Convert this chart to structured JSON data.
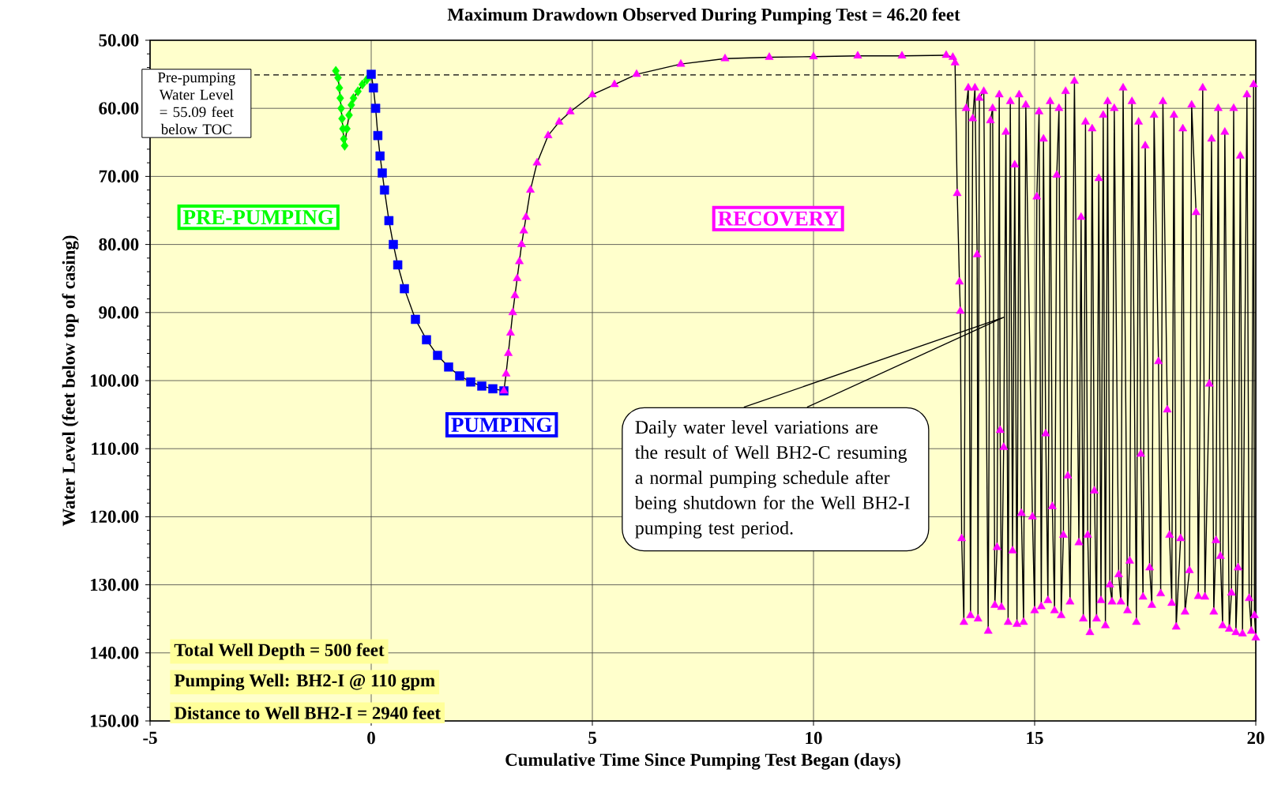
{
  "chart_data": {
    "type": "line",
    "title": "Maximum Drawdown Observed During Pumping Test = 46.20 feet",
    "xlabel": "Cumulative Time Since Pumping Test Began (days)",
    "ylabel": "Water Level (feet below top of casing)",
    "xlim": [
      -5,
      20
    ],
    "xticks": [
      -5,
      0,
      5,
      10,
      15,
      20
    ],
    "ylim": [
      150,
      50
    ],
    "yticks": [
      {
        "value": 50,
        "label": "50.00"
      },
      {
        "value": 60,
        "label": "60.00"
      },
      {
        "value": 70,
        "label": "70.00"
      },
      {
        "value": 80,
        "label": "80.00"
      },
      {
        "value": 90,
        "label": "90.00"
      },
      {
        "value": 100,
        "label": "100.00"
      },
      {
        "value": 110,
        "label": "110.00"
      },
      {
        "value": 120,
        "label": "120.00"
      },
      {
        "value": 130,
        "label": "130.00"
      },
      {
        "value": 140,
        "label": "140.00"
      },
      {
        "value": 150,
        "label": "150.00"
      }
    ],
    "grid": true,
    "series": [
      {
        "color": "#00ff00",
        "marker": "diamond",
        "x": [
          -0.8,
          -0.75,
          -0.72,
          -0.7,
          -0.68,
          -0.66,
          -0.64,
          -0.62,
          -0.6,
          -0.55,
          -0.5,
          -0.45,
          -0.4,
          -0.3,
          -0.2,
          -0.1,
          -0.02
        ],
        "values": [
          54.5,
          55.5,
          57,
          58.5,
          60,
          61.5,
          63,
          64.5,
          65.5,
          63,
          61,
          59.5,
          58.5,
          57.5,
          56.5,
          55.8,
          55.2
        ]
      },
      {
        "color": "#0000ff",
        "marker": "square",
        "x": [
          0,
          0.05,
          0.1,
          0.15,
          0.2,
          0.25,
          0.3,
          0.4,
          0.5,
          0.6,
          0.75,
          1.0,
          1.25,
          1.5,
          1.75,
          2.0,
          2.25,
          2.5,
          2.75,
          3.0
        ],
        "values": [
          55,
          57,
          60,
          64,
          67,
          69.5,
          72,
          76.5,
          80,
          83,
          86.5,
          91,
          94,
          96.3,
          98,
          99.3,
          100.2,
          100.8,
          101.2,
          101.5
        ]
      },
      {
        "color": "#ff00ff",
        "marker": "triangle",
        "x": [
          3.0,
          3.05,
          3.1,
          3.15,
          3.2,
          3.25,
          3.3,
          3.35,
          3.4,
          3.45,
          3.5,
          3.6,
          3.75,
          4.0,
          4.25,
          4.5,
          5.0,
          5.5,
          6.0,
          7.0,
          8.0,
          9.0,
          10.0,
          11.0,
          12.0,
          13.0,
          13.15,
          13.2,
          13.25,
          13.3,
          13.32,
          13.35,
          13.4,
          13.45,
          13.5,
          13.55,
          13.6,
          13.65,
          13.7,
          13.72,
          13.75,
          13.85,
          13.95,
          14.0,
          14.05,
          14.1,
          14.15,
          14.2,
          14.22,
          14.25,
          14.3,
          14.35,
          14.4,
          14.45,
          14.5,
          14.55,
          14.6,
          14.65,
          14.7,
          14.75,
          14.8,
          14.95,
          15.0,
          15.05,
          15.1,
          15.15,
          15.2,
          15.25,
          15.3,
          15.35,
          15.4,
          15.45,
          15.5,
          15.55,
          15.6,
          15.65,
          15.7,
          15.75,
          15.8,
          15.9,
          16.0,
          16.05,
          16.1,
          16.15,
          16.2,
          16.25,
          16.3,
          16.35,
          16.4,
          16.45,
          16.5,
          16.55,
          16.6,
          16.65,
          16.7,
          16.75,
          16.8,
          16.9,
          16.95,
          17.0,
          17.1,
          17.15,
          17.2,
          17.3,
          17.35,
          17.4,
          17.45,
          17.5,
          17.6,
          17.65,
          17.7,
          17.8,
          17.85,
          17.9,
          18.0,
          18.05,
          18.1,
          18.15,
          18.2,
          18.3,
          18.35,
          18.4,
          18.5,
          18.55,
          18.65,
          18.7,
          18.8,
          18.85,
          18.95,
          19.0,
          19.05,
          19.1,
          19.15,
          19.2,
          19.25,
          19.3,
          19.4,
          19.45,
          19.5,
          19.55,
          19.6,
          19.65,
          19.7,
          19.8,
          19.85,
          19.9,
          19.95,
          19.97,
          20.0
        ],
        "values": [
          101.5,
          99,
          96,
          93,
          90,
          87.5,
          85,
          82.5,
          80,
          78,
          76,
          72,
          68,
          64,
          62,
          60.5,
          58,
          56.5,
          55,
          53.5,
          52.7,
          52.5,
          52.4,
          52.3,
          52.3,
          52.2,
          52.5,
          53.3,
          72.5,
          85.5,
          89.8,
          123.2,
          135.5,
          60,
          57,
          134.5,
          61.5,
          57,
          81.5,
          135,
          58.5,
          57.5,
          136.8,
          61.8,
          60,
          133,
          124.5,
          58,
          107.3,
          133.3,
          109.8,
          63.5,
          135.5,
          59,
          125,
          68.3,
          135.8,
          58,
          119.5,
          135.5,
          59.5,
          120,
          133.8,
          73,
          60.5,
          133.2,
          64.5,
          107.8,
          132.3,
          59,
          118.5,
          133.8,
          69.8,
          60,
          134.5,
          122.7,
          57.5,
          114,
          132.5,
          56,
          123.8,
          76,
          135,
          62,
          122.7,
          137,
          63,
          116.2,
          135,
          70.3,
          132.3,
          61,
          136,
          59,
          130,
          132.5,
          60,
          128.5,
          132.5,
          57,
          133.8,
          126.5,
          59,
          135.5,
          62,
          110.8,
          131.8,
          65.5,
          127.5,
          133,
          61,
          97.2,
          131.3,
          59,
          104.3,
          122.7,
          132.7,
          61,
          136.2,
          123.2,
          63,
          134,
          127.9,
          59.5,
          75.3,
          131.7,
          57,
          131.8,
          100.5,
          64.5,
          134,
          123.5,
          60,
          125.8,
          136,
          63.5,
          136.5,
          131.2,
          60,
          137,
          127.5,
          67,
          137.2,
          58,
          132,
          136.8,
          56.5,
          134.5,
          137.8
        ]
      }
    ],
    "ref_lines": [
      {
        "axis": "y",
        "value": 55.09,
        "label": "Pre-pumping Water Level = 55.09  feet below TOC",
        "line_style": "dashed",
        "color": "#000000"
      }
    ],
    "annotations": [
      "PRE-PUMPING",
      "PUMPING",
      "RECOVERY",
      "Daily water level variations are the result of Well BH2-C resuming a normal pumping schedule after being shutdown for the Well BH2-I pumping test period.",
      "Total Well Depth = 500 feet",
      "Pumping Well: BH2-I @ 110 gpm",
      "Distance to Well BH2-I  = 2940 feet"
    ]
  }
}
